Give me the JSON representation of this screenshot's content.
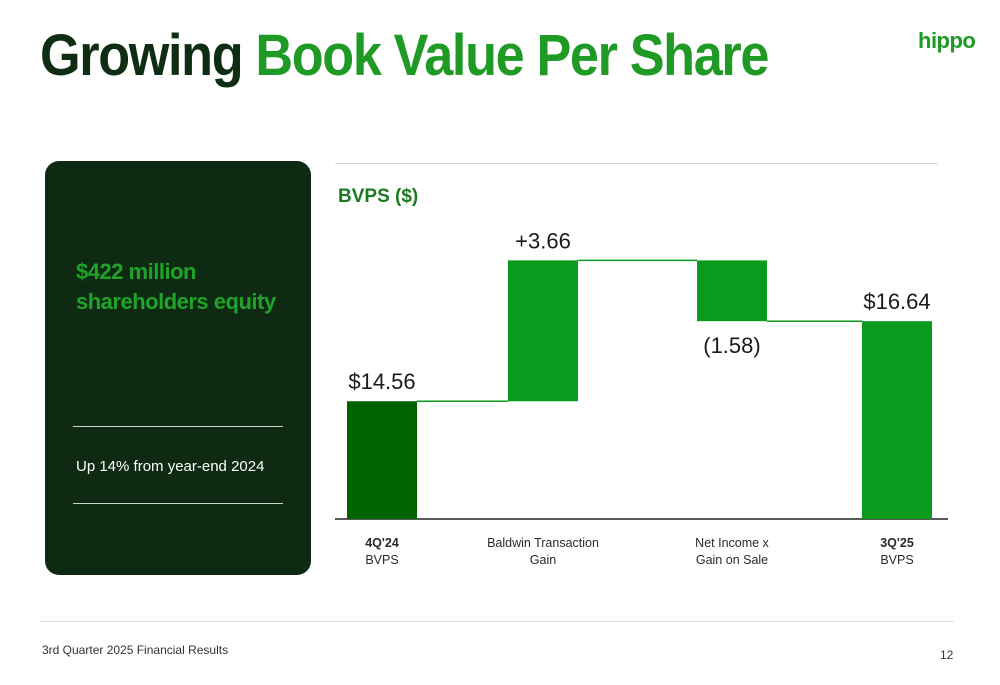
{
  "header": {
    "title_part1": "Growing",
    "title_part2": "Book Value Per Share",
    "logo": "hippo"
  },
  "side_panel": {
    "headline": "$422 million shareholders equity",
    "note": "Up 14% from year-end 2024"
  },
  "footer": {
    "left": "3rd Quarter 2025 Financial Results",
    "page": "12"
  },
  "colors": {
    "start_bar": "#006300",
    "step_bar": "#0a9a1e",
    "end_bar": "#0a9a1e",
    "connector": "#0a9a1e"
  },
  "chart_data": {
    "type": "waterfall",
    "title": "BVPS ($)",
    "categories": [
      {
        "bold": "4Q'24",
        "sub": "BVPS"
      },
      {
        "bold": "",
        "line1": "Baldwin Transaction",
        "sub": "Gain"
      },
      {
        "bold": "",
        "line1": "Net Income x",
        "sub": "Gain on Sale"
      },
      {
        "bold": "3Q'25",
        "sub": "BVPS"
      }
    ],
    "values": [
      14.56,
      3.66,
      -1.58,
      16.64
    ],
    "kinds": [
      "total",
      "delta",
      "delta",
      "total"
    ],
    "labels": [
      "$14.56",
      "+3.66",
      "(1.58)",
      "$16.64"
    ],
    "ylim": [
      11.5,
      18.5
    ]
  }
}
